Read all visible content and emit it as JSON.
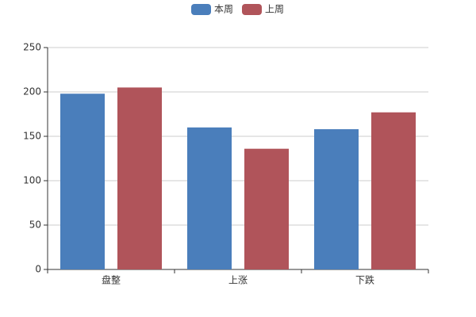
{
  "chart_data": {
    "type": "bar",
    "categories": [
      "盘整",
      "上涨",
      "下跌"
    ],
    "series": [
      {
        "name": "本周",
        "color": "#4a7ebb",
        "values": [
          198,
          160,
          158
        ]
      },
      {
        "name": "上周",
        "color": "#b0545a",
        "values": [
          205,
          136,
          177
        ]
      }
    ],
    "ylim": [
      0,
      250
    ],
    "yticks": [
      0,
      50,
      100,
      150,
      200,
      250
    ],
    "grid": true,
    "legend": "top"
  }
}
